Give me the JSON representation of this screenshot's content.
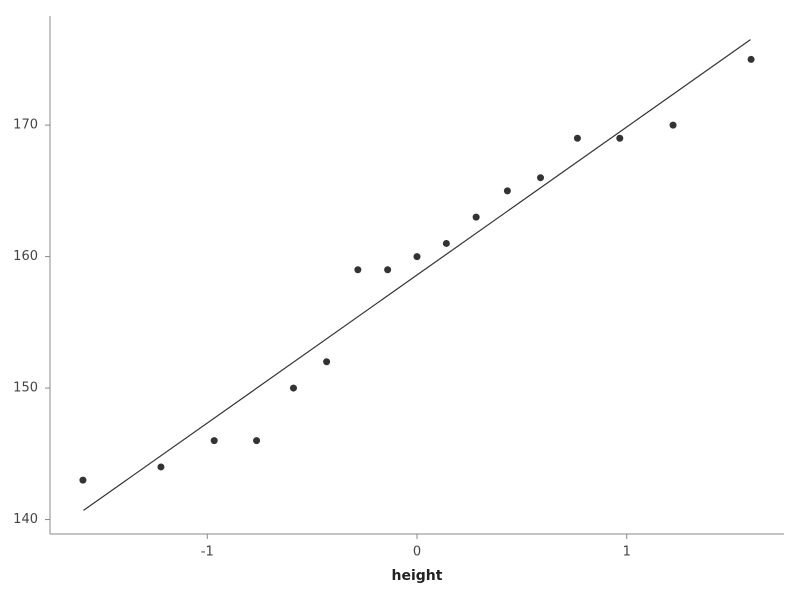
{
  "chart_data": {
    "type": "scatter",
    "x_label": "height",
    "x": [
      -1.593,
      -1.221,
      -0.967,
      -0.765,
      -0.589,
      -0.431,
      -0.282,
      -0.14,
      0,
      0.14,
      0.282,
      0.431,
      0.589,
      0.765,
      0.967,
      1.221,
      1.593
    ],
    "values": [
      143,
      144,
      146,
      146,
      150,
      152,
      159,
      159,
      160,
      161,
      163,
      165,
      166,
      169,
      169,
      170,
      175
    ],
    "color": "#333333",
    "fit_line": {
      "x": [
        -1.59,
        1.59
      ],
      "y": [
        140.7,
        176.5
      ],
      "color": "#333333"
    },
    "xlim": [
      -1.75,
      1.75
    ],
    "ylim": [
      138.9,
      178.3
    ],
    "xticks": [
      -1,
      0,
      1
    ],
    "yticks": [
      140,
      150,
      160,
      170
    ],
    "grid": false
  }
}
